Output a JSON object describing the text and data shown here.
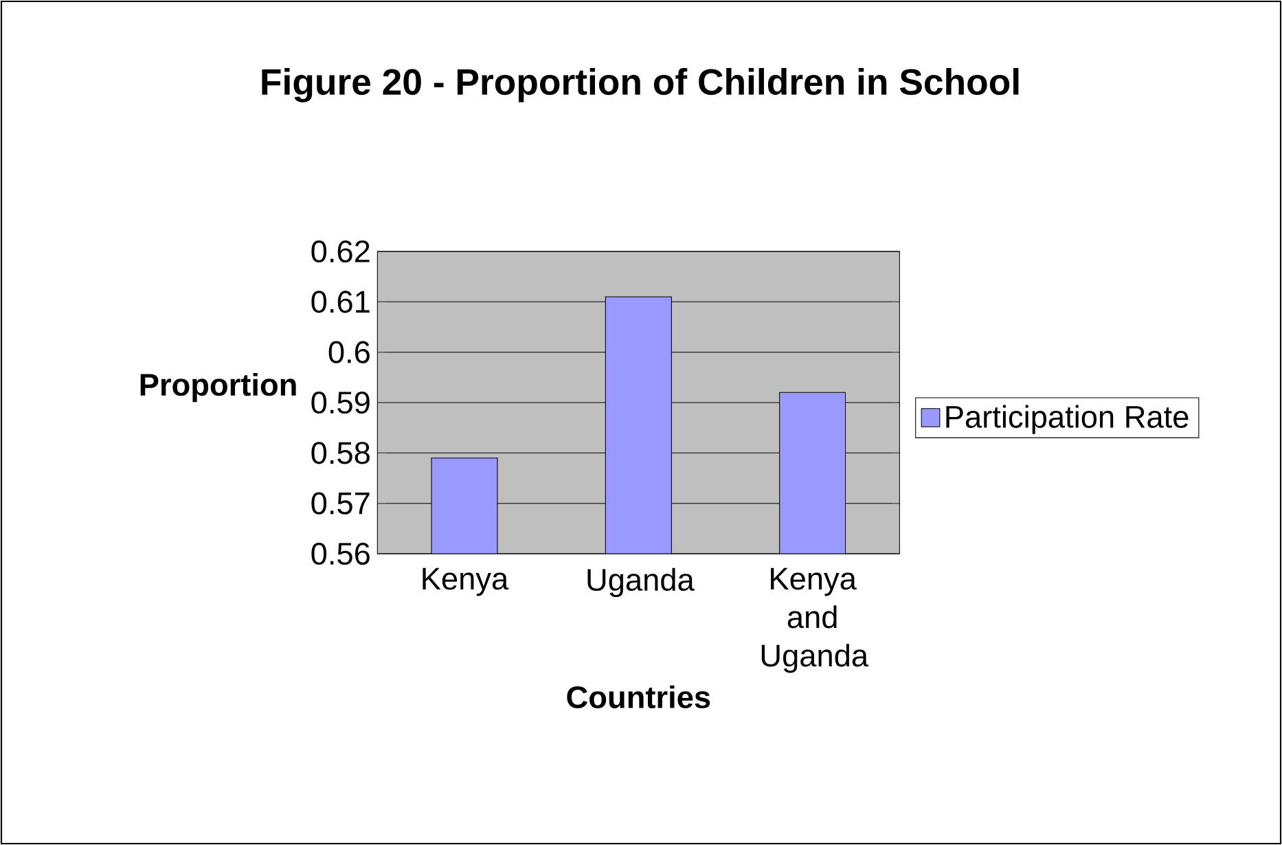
{
  "chart_data": {
    "type": "bar",
    "title": "Figure 20 - Proportion of Children in School",
    "xlabel": "Countries",
    "ylabel": "Proportion",
    "categories": [
      "Kenya",
      "Uganda",
      "Kenya and Uganda"
    ],
    "series": [
      {
        "name": "Participation Rate",
        "color": "#9999ff",
        "values": [
          0.579,
          0.611,
          0.592
        ]
      }
    ],
    "ylim": [
      0.56,
      0.62
    ],
    "yticks": [
      0.56,
      0.57,
      0.58,
      0.59,
      0.6,
      0.61,
      0.62
    ],
    "grid": "y",
    "legend": "right"
  }
}
